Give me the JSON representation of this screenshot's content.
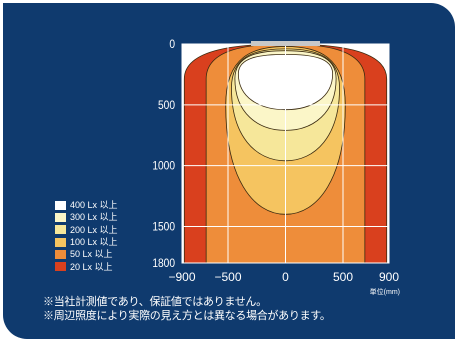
{
  "chart_data": {
    "type": "contour",
    "series": [
      {
        "name": "400 Lx 以上",
        "color": "#ffffff"
      },
      {
        "name": "300 Lx 以上",
        "color": "#fbf6c8"
      },
      {
        "name": "200 Lx 以上",
        "color": "#f6e79a"
      },
      {
        "name": "100 Lx 以上",
        "color": "#f5c460"
      },
      {
        "name": "50 Lx 以上",
        "color": "#ee8d3a"
      },
      {
        "name": "20 Lx 以上",
        "color": "#d9401e"
      }
    ],
    "x_ticks": [
      "−900",
      "−500",
      "0",
      "500",
      "900"
    ],
    "y_ticks": [
      "0",
      "500",
      "1000",
      "1500",
      "1800"
    ],
    "xlim": [
      -900,
      900
    ],
    "ylim": [
      0,
      1800
    ],
    "x_unit": "単位(mm)",
    "grid": true,
    "legend_position": "bottom-left",
    "fixture_color": "#c8c8c8",
    "contours": [
      {
        "top": 0,
        "bottom": 1800,
        "half_width": 880
      },
      {
        "top": 0,
        "bottom": 1800,
        "half_width": 690
      },
      {
        "top": 20,
        "bottom": 1400,
        "half_width": 520
      },
      {
        "top": 40,
        "bottom": 960,
        "half_width": 470
      },
      {
        "top": 55,
        "bottom": 710,
        "half_width": 440
      },
      {
        "top": 85,
        "bottom": 540,
        "half_width": 410
      }
    ]
  },
  "notes": [
    "※当社計測値であり、保証値ではありません。",
    "※周辺照度により実際の見え方とは異なる場合があります。"
  ]
}
